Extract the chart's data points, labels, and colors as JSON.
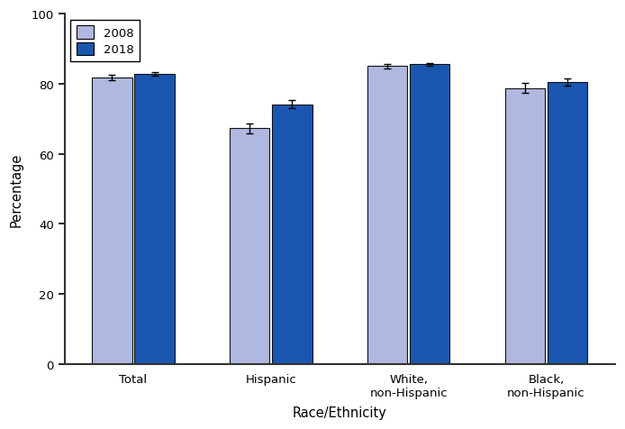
{
  "categories": [
    "Total",
    "Hispanic",
    "White,\nnon-Hispanic",
    "Black,\nnon-Hispanic"
  ],
  "values_2008": [
    81.7,
    67.3,
    85.0,
    78.7
  ],
  "values_2018": [
    82.8,
    74.1,
    85.5,
    80.4
  ],
  "errors_2008": [
    0.8,
    1.4,
    0.6,
    1.4
  ],
  "errors_2018": [
    0.6,
    1.2,
    0.5,
    1.0
  ],
  "color_2008": "#b0b8e0",
  "color_2018": "#1a56b0",
  "bar_edge_color": "#111111",
  "xlabel": "Race/Ethnicity",
  "ylabel": "Percentage",
  "ylim": [
    0,
    100
  ],
  "yticks": [
    0,
    20,
    40,
    60,
    80,
    100
  ],
  "legend_labels": [
    "2008",
    "2018"
  ],
  "bar_width": 0.32,
  "figure_bg": "#ffffff",
  "axes_bg": "#ffffff"
}
